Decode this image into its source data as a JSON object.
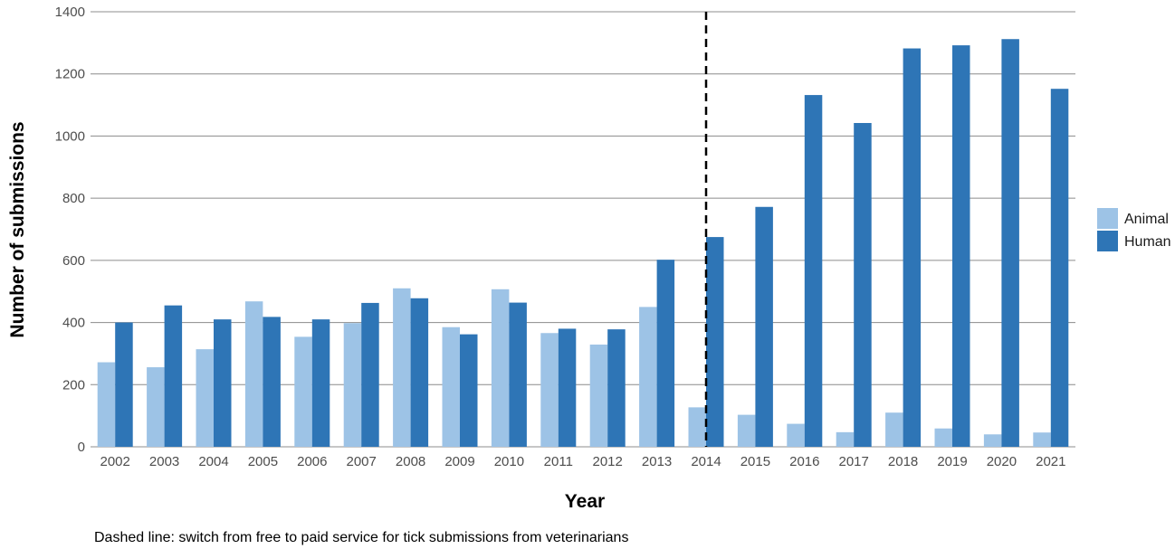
{
  "chart_data": {
    "type": "bar",
    "xlabel": "Year",
    "ylabel": "Number of submissions",
    "ylim": [
      0,
      1400
    ],
    "yticks": [
      0,
      200,
      400,
      600,
      800,
      1000,
      1200,
      1400
    ],
    "grid": "horizontal",
    "legend_position": "right",
    "categories": [
      "2002",
      "2003",
      "2004",
      "2005",
      "2006",
      "2007",
      "2008",
      "2009",
      "2010",
      "2011",
      "2012",
      "2013",
      "2014",
      "2015",
      "2016",
      "2017",
      "2018",
      "2019",
      "2020",
      "2021"
    ],
    "series": [
      {
        "name": "Animal",
        "color": "#9dc3e6",
        "values": [
          272,
          256,
          314,
          468,
          354,
          398,
          510,
          385,
          507,
          366,
          329,
          450,
          127,
          103,
          74,
          47,
          110,
          59,
          40,
          46
        ]
      },
      {
        "name": "Human",
        "color": "#2e75b6",
        "values": [
          400,
          455,
          410,
          418,
          410,
          463,
          478,
          362,
          464,
          380,
          378,
          602,
          675,
          772,
          1132,
          1042,
          1282,
          1292,
          1312,
          1152
        ]
      }
    ],
    "annotation": {
      "dashed_line_at": "2014",
      "caption": "Dashed line: switch from free to paid service for tick submissions from veterinarians"
    }
  }
}
